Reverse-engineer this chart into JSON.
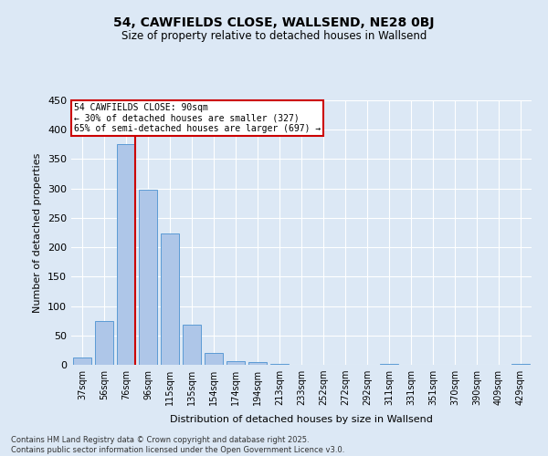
{
  "title": "54, CAWFIELDS CLOSE, WALLSEND, NE28 0BJ",
  "subtitle": "Size of property relative to detached houses in Wallsend",
  "xlabel": "Distribution of detached houses by size in Wallsend",
  "ylabel": "Number of detached properties",
  "bar_color": "#aec6e8",
  "bar_edge_color": "#5b9bd5",
  "background_color": "#dce8f5",
  "grid_color": "#ffffff",
  "categories": [
    "37sqm",
    "56sqm",
    "76sqm",
    "96sqm",
    "115sqm",
    "135sqm",
    "154sqm",
    "174sqm",
    "194sqm",
    "213sqm",
    "233sqm",
    "252sqm",
    "272sqm",
    "292sqm",
    "311sqm",
    "331sqm",
    "351sqm",
    "370sqm",
    "390sqm",
    "409sqm",
    "429sqm"
  ],
  "values": [
    12,
    75,
    375,
    298,
    224,
    68,
    20,
    6,
    5,
    1,
    0,
    0,
    0,
    0,
    1,
    0,
    0,
    0,
    0,
    0,
    1
  ],
  "ylim": [
    0,
    450
  ],
  "yticks": [
    0,
    50,
    100,
    150,
    200,
    250,
    300,
    350,
    400,
    450
  ],
  "vline_color": "#cc0000",
  "annotation_text": "54 CAWFIELDS CLOSE: 90sqm\n← 30% of detached houses are smaller (327)\n65% of semi-detached houses are larger (697) →",
  "annotation_box_color": "#ffffff",
  "annotation_box_edge": "#cc0000",
  "footer_text": "Contains HM Land Registry data © Crown copyright and database right 2025.\nContains public sector information licensed under the Open Government Licence v3.0.",
  "figsize": [
    6.0,
    5.0
  ],
  "dpi": 100
}
